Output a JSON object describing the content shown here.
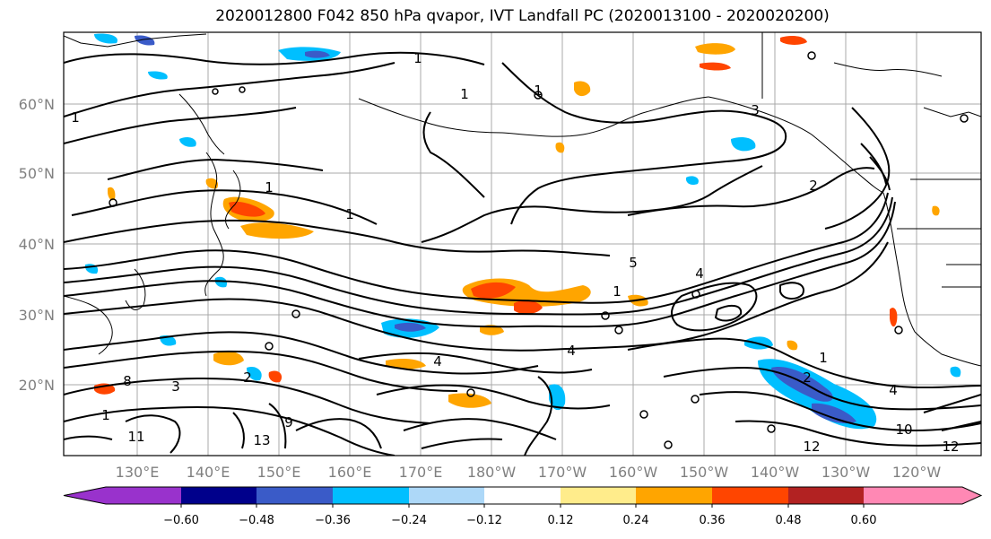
{
  "title": "2020012800 F042 850 hPa qvapor, IVT Landfall PC (2020013100 - 2020020200)",
  "lat_labels": [
    "60°N",
    "50°N",
    "40°N",
    "30°N",
    "20°N"
  ],
  "lon_labels": [
    "130°E",
    "140°E",
    "150°E",
    "160°E",
    "170°E",
    "180°W",
    "170°W",
    "160°W",
    "150°W",
    "140°W",
    "130°W",
    "120°W"
  ],
  "colorbar": {
    "colors": [
      "#9932cc",
      "#00008b",
      "#3a5bc8",
      "#00bfff",
      "#add8f8",
      "#ffffff",
      "#ffec8b",
      "#ffa500",
      "#ff4500",
      "#b22222",
      "#ff88b4"
    ],
    "ticks": [
      "−0.60",
      "−0.48",
      "−0.36",
      "−0.24",
      "−0.12",
      "0.12",
      "0.24",
      "0.36",
      "0.48",
      "0.60"
    ]
  },
  "contour_labels": [
    "1",
    "1",
    "1",
    "3",
    "2",
    "1",
    "1",
    "1",
    "1",
    "8",
    "11",
    "13",
    "9",
    "4",
    "4",
    "2",
    "3",
    "1",
    "1",
    "4",
    "2",
    "10",
    "12",
    "12",
    "4",
    "5"
  ]
}
